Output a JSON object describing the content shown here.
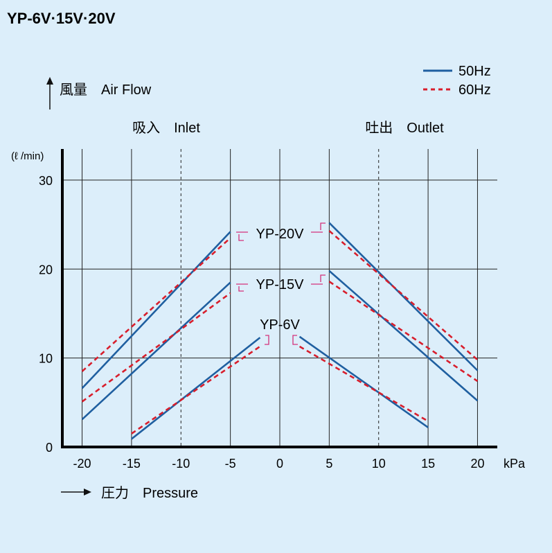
{
  "chart_data": {
    "type": "line",
    "title": "YP-6V·15V·20V",
    "ylabel": "風量　Air Flow",
    "yunit": "(ℓ /min)",
    "xlabel": "圧力　Pressure",
    "xunit": "kPa",
    "regions": {
      "inlet": "吸入　Inlet",
      "outlet": "吐出　Outlet"
    },
    "xlim": [
      -22,
      22
    ],
    "ylim": [
      0,
      33.5
    ],
    "xticks": [
      -20,
      -15,
      -10,
      -5,
      0,
      5,
      10,
      15,
      20
    ],
    "yticks": [
      0,
      10,
      20,
      30
    ],
    "legend": {
      "position": "top-right",
      "entries": [
        {
          "label": "50Hz",
          "style": "solid",
          "color": "#1f5fa0"
        },
        {
          "label": "60Hz",
          "style": "dashed",
          "color": "#d81e2c"
        }
      ]
    },
    "series": [
      {
        "model": "YP-20V",
        "freq": "50Hz",
        "side": "inlet",
        "x": [
          -20,
          -5
        ],
        "y": [
          6.6,
          24.2
        ]
      },
      {
        "model": "YP-20V",
        "freq": "60Hz",
        "side": "inlet",
        "x": [
          -20,
          -5
        ],
        "y": [
          8.5,
          23.5
        ]
      },
      {
        "model": "YP-20V",
        "freq": "50Hz",
        "side": "outlet",
        "x": [
          5,
          20
        ],
        "y": [
          25.2,
          8.6
        ]
      },
      {
        "model": "YP-20V",
        "freq": "60Hz",
        "side": "outlet",
        "x": [
          5,
          20
        ],
        "y": [
          24.3,
          9.8
        ]
      },
      {
        "model": "YP-15V",
        "freq": "50Hz",
        "side": "inlet",
        "x": [
          -20,
          -5
        ],
        "y": [
          3.1,
          18.5
        ]
      },
      {
        "model": "YP-15V",
        "freq": "60Hz",
        "side": "inlet",
        "x": [
          -20,
          -5
        ],
        "y": [
          5.1,
          17.3
        ]
      },
      {
        "model": "YP-15V",
        "freq": "50Hz",
        "side": "outlet",
        "x": [
          5,
          20
        ],
        "y": [
          19.8,
          5.2
        ]
      },
      {
        "model": "YP-15V",
        "freq": "60Hz",
        "side": "outlet",
        "x": [
          5,
          20
        ],
        "y": [
          18.6,
          7.4
        ]
      },
      {
        "model": "YP-6V",
        "freq": "50Hz",
        "side": "inlet",
        "x": [
          -15,
          -2
        ],
        "y": [
          0.9,
          12.3
        ]
      },
      {
        "model": "YP-6V",
        "freq": "60Hz",
        "side": "inlet",
        "x": [
          -15,
          -2
        ],
        "y": [
          1.5,
          11.3
        ]
      },
      {
        "model": "YP-6V",
        "freq": "50Hz",
        "side": "outlet",
        "x": [
          2,
          15
        ],
        "y": [
          12.4,
          2.2
        ]
      },
      {
        "model": "YP-6V",
        "freq": "60Hz",
        "side": "outlet",
        "x": [
          2,
          15
        ],
        "y": [
          11.3,
          2.9
        ]
      }
    ],
    "model_labels": [
      {
        "text": "YP-20V",
        "x": 0,
        "y": 24.0
      },
      {
        "text": "YP-15V",
        "x": 0,
        "y": 18.3
      },
      {
        "text": "YP-6V",
        "x": 0,
        "y": 13.8
      }
    ]
  }
}
